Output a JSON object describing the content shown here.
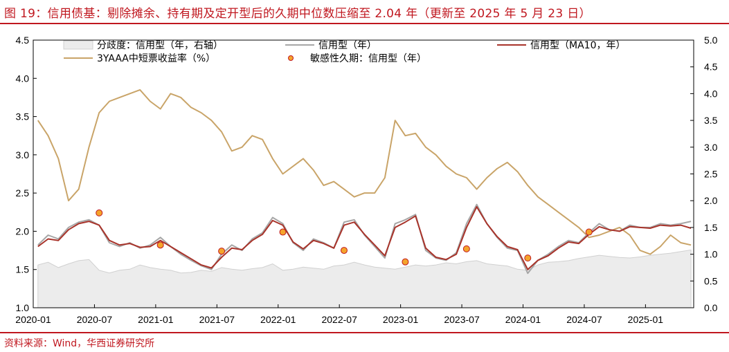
{
  "title": "图 19：信用债基：剔除摊余、持有期及定开型后的久期中位数压缩至 2.04 年（更新至 2025 年 5 月 23 日）",
  "source": "资料来源：Wind，华西证券研究所",
  "colors": {
    "accent": "#c0171f",
    "divergence_fill": "#ececec",
    "divergence_stroke": "#d0d0d0",
    "credit_line": "#a6a6a6",
    "ma10_line": "#a8332a",
    "yield_line": "#c9a468",
    "marker_fill": "#f4a42c",
    "marker_stroke": "#c0171f"
  },
  "legend": [
    {
      "label": "分歧度：信用型（年，右轴）",
      "kind": "area"
    },
    {
      "label": "信用型（年）",
      "kind": "line-gray"
    },
    {
      "label": "信用型（MA10，年）",
      "kind": "line-red"
    },
    {
      "label": "3YAAA中短票收益率（%）",
      "kind": "line-gold"
    },
    {
      "label": "敏感性久期：信用型（年）",
      "kind": "marker"
    }
  ],
  "chart_data": {
    "type": "line",
    "x_ticks": [
      "2020-01",
      "2020-07",
      "2021-01",
      "2021-07",
      "2022-01",
      "2022-07",
      "2023-01",
      "2023-07",
      "2024-01",
      "2024-07",
      "2025-01"
    ],
    "x_range": [
      "2020-01-01",
      "2025-05-23"
    ],
    "y_left": {
      "min": 1.0,
      "max": 4.5,
      "ticks": [
        "1.0",
        "1.5",
        "2.0",
        "2.5",
        "3.0",
        "3.5",
        "4.0",
        "4.5"
      ]
    },
    "y_right": {
      "min": 0.0,
      "max": 5.0,
      "ticks": [
        "0.0",
        "0.5",
        "1.0",
        "1.5",
        "2.0",
        "2.5",
        "3.0",
        "3.5",
        "4.0",
        "4.5",
        "5.0"
      ]
    },
    "series": [
      {
        "name": "信用型（年）",
        "axis": "left",
        "points": [
          [
            "2020-01",
            1.82
          ],
          [
            "2020-02",
            1.95
          ],
          [
            "2020-03",
            1.9
          ],
          [
            "2020-04",
            2.05
          ],
          [
            "2020-05",
            2.12
          ],
          [
            "2020-06",
            2.15
          ],
          [
            "2020-07",
            2.08
          ],
          [
            "2020-08",
            1.85
          ],
          [
            "2020-09",
            1.8
          ],
          [
            "2020-10",
            1.85
          ],
          [
            "2020-11",
            1.78
          ],
          [
            "2020-12",
            1.82
          ],
          [
            "2021-01",
            1.92
          ],
          [
            "2021-02",
            1.8
          ],
          [
            "2021-03",
            1.7
          ],
          [
            "2021-04",
            1.62
          ],
          [
            "2021-05",
            1.55
          ],
          [
            "2021-06",
            1.5
          ],
          [
            "2021-07",
            1.7
          ],
          [
            "2021-08",
            1.82
          ],
          [
            "2021-09",
            1.75
          ],
          [
            "2021-10",
            1.9
          ],
          [
            "2021-11",
            1.98
          ],
          [
            "2021-12",
            2.18
          ],
          [
            "2022-01",
            2.1
          ],
          [
            "2022-02",
            1.85
          ],
          [
            "2022-03",
            1.75
          ],
          [
            "2022-04",
            1.9
          ],
          [
            "2022-05",
            1.85
          ],
          [
            "2022-06",
            1.78
          ],
          [
            "2022-07",
            2.12
          ],
          [
            "2022-08",
            2.15
          ],
          [
            "2022-09",
            1.95
          ],
          [
            "2022-10",
            1.8
          ],
          [
            "2022-11",
            1.65
          ],
          [
            "2022-12",
            2.1
          ],
          [
            "2023-01",
            2.15
          ],
          [
            "2023-02",
            2.22
          ],
          [
            "2023-03",
            1.75
          ],
          [
            "2023-04",
            1.65
          ],
          [
            "2023-05",
            1.62
          ],
          [
            "2023-06",
            1.72
          ],
          [
            "2023-07",
            2.1
          ],
          [
            "2023-08",
            2.35
          ],
          [
            "2023-09",
            2.1
          ],
          [
            "2023-10",
            1.92
          ],
          [
            "2023-11",
            1.78
          ],
          [
            "2023-12",
            1.75
          ],
          [
            "2024-01",
            1.45
          ],
          [
            "2024-02",
            1.62
          ],
          [
            "2024-03",
            1.7
          ],
          [
            "2024-04",
            1.8
          ],
          [
            "2024-05",
            1.88
          ],
          [
            "2024-06",
            1.85
          ],
          [
            "2024-07",
            1.98
          ],
          [
            "2024-08",
            2.1
          ],
          [
            "2024-09",
            2.02
          ],
          [
            "2024-10",
            2.0
          ],
          [
            "2024-11",
            2.08
          ],
          [
            "2024-12",
            2.05
          ],
          [
            "2025-01",
            2.05
          ],
          [
            "2025-02",
            2.1
          ],
          [
            "2025-03",
            2.08
          ],
          [
            "2025-04",
            2.1
          ],
          [
            "2025-05",
            2.13
          ]
        ]
      },
      {
        "name": "信用型（MA10，年）",
        "axis": "left",
        "points": [
          [
            "2020-01",
            1.8
          ],
          [
            "2020-02",
            1.9
          ],
          [
            "2020-03",
            1.88
          ],
          [
            "2020-04",
            2.02
          ],
          [
            "2020-05",
            2.1
          ],
          [
            "2020-06",
            2.13
          ],
          [
            "2020-07",
            2.08
          ],
          [
            "2020-08",
            1.88
          ],
          [
            "2020-09",
            1.82
          ],
          [
            "2020-10",
            1.84
          ],
          [
            "2020-11",
            1.79
          ],
          [
            "2020-12",
            1.8
          ],
          [
            "2021-01",
            1.88
          ],
          [
            "2021-02",
            1.8
          ],
          [
            "2021-03",
            1.72
          ],
          [
            "2021-04",
            1.64
          ],
          [
            "2021-05",
            1.56
          ],
          [
            "2021-06",
            1.52
          ],
          [
            "2021-07",
            1.66
          ],
          [
            "2021-08",
            1.78
          ],
          [
            "2021-09",
            1.76
          ],
          [
            "2021-10",
            1.88
          ],
          [
            "2021-11",
            1.96
          ],
          [
            "2021-12",
            2.14
          ],
          [
            "2022-01",
            2.08
          ],
          [
            "2022-02",
            1.86
          ],
          [
            "2022-03",
            1.77
          ],
          [
            "2022-04",
            1.88
          ],
          [
            "2022-05",
            1.84
          ],
          [
            "2022-06",
            1.78
          ],
          [
            "2022-07",
            2.08
          ],
          [
            "2022-08",
            2.12
          ],
          [
            "2022-09",
            1.96
          ],
          [
            "2022-10",
            1.82
          ],
          [
            "2022-11",
            1.68
          ],
          [
            "2022-12",
            2.05
          ],
          [
            "2023-01",
            2.12
          ],
          [
            "2023-02",
            2.2
          ],
          [
            "2023-03",
            1.78
          ],
          [
            "2023-04",
            1.66
          ],
          [
            "2023-05",
            1.63
          ],
          [
            "2023-06",
            1.7
          ],
          [
            "2023-07",
            2.05
          ],
          [
            "2023-08",
            2.32
          ],
          [
            "2023-09",
            2.1
          ],
          [
            "2023-10",
            1.93
          ],
          [
            "2023-11",
            1.8
          ],
          [
            "2023-12",
            1.76
          ],
          [
            "2024-01",
            1.5
          ],
          [
            "2024-02",
            1.62
          ],
          [
            "2024-03",
            1.68
          ],
          [
            "2024-04",
            1.78
          ],
          [
            "2024-05",
            1.86
          ],
          [
            "2024-06",
            1.84
          ],
          [
            "2024-07",
            1.96
          ],
          [
            "2024-08",
            2.06
          ],
          [
            "2024-09",
            2.02
          ],
          [
            "2024-10",
            2.0
          ],
          [
            "2024-11",
            2.06
          ],
          [
            "2024-12",
            2.05
          ],
          [
            "2025-01",
            2.04
          ],
          [
            "2025-02",
            2.08
          ],
          [
            "2025-03",
            2.07
          ],
          [
            "2025-04",
            2.08
          ],
          [
            "2025-05",
            2.04
          ]
        ]
      },
      {
        "name": "3YAAA中短票收益率（%）",
        "axis": "left",
        "points": [
          [
            "2020-01",
            3.45
          ],
          [
            "2020-02",
            3.25
          ],
          [
            "2020-03",
            2.95
          ],
          [
            "2020-04",
            2.4
          ],
          [
            "2020-05",
            2.55
          ],
          [
            "2020-06",
            3.1
          ],
          [
            "2020-07",
            3.55
          ],
          [
            "2020-08",
            3.7
          ],
          [
            "2020-09",
            3.75
          ],
          [
            "2020-10",
            3.8
          ],
          [
            "2020-11",
            3.85
          ],
          [
            "2020-12",
            3.7
          ],
          [
            "2021-01",
            3.6
          ],
          [
            "2021-02",
            3.8
          ],
          [
            "2021-03",
            3.75
          ],
          [
            "2021-04",
            3.62
          ],
          [
            "2021-05",
            3.55
          ],
          [
            "2021-06",
            3.45
          ],
          [
            "2021-07",
            3.3
          ],
          [
            "2021-08",
            3.05
          ],
          [
            "2021-09",
            3.1
          ],
          [
            "2021-10",
            3.25
          ],
          [
            "2021-11",
            3.2
          ],
          [
            "2021-12",
            2.95
          ],
          [
            "2022-01",
            2.75
          ],
          [
            "2022-02",
            2.85
          ],
          [
            "2022-03",
            2.95
          ],
          [
            "2022-04",
            2.8
          ],
          [
            "2022-05",
            2.6
          ],
          [
            "2022-06",
            2.65
          ],
          [
            "2022-07",
            2.55
          ],
          [
            "2022-08",
            2.45
          ],
          [
            "2022-09",
            2.5
          ],
          [
            "2022-10",
            2.5
          ],
          [
            "2022-11",
            2.7
          ],
          [
            "2022-12",
            3.45
          ],
          [
            "2023-01",
            3.25
          ],
          [
            "2023-02",
            3.28
          ],
          [
            "2023-03",
            3.1
          ],
          [
            "2023-04",
            3.0
          ],
          [
            "2023-05",
            2.85
          ],
          [
            "2023-06",
            2.75
          ],
          [
            "2023-07",
            2.7
          ],
          [
            "2023-08",
            2.55
          ],
          [
            "2023-09",
            2.7
          ],
          [
            "2023-10",
            2.82
          ],
          [
            "2023-11",
            2.9
          ],
          [
            "2023-12",
            2.78
          ],
          [
            "2024-01",
            2.6
          ],
          [
            "2024-02",
            2.45
          ],
          [
            "2024-03",
            2.35
          ],
          [
            "2024-04",
            2.25
          ],
          [
            "2024-05",
            2.15
          ],
          [
            "2024-06",
            2.05
          ],
          [
            "2024-07",
            1.92
          ],
          [
            "2024-08",
            1.95
          ],
          [
            "2024-09",
            2.0
          ],
          [
            "2024-10",
            2.05
          ],
          [
            "2024-11",
            1.95
          ],
          [
            "2024-12",
            1.75
          ],
          [
            "2025-01",
            1.7
          ],
          [
            "2025-02",
            1.8
          ],
          [
            "2025-03",
            1.95
          ],
          [
            "2025-04",
            1.85
          ],
          [
            "2025-05",
            1.82
          ]
        ]
      },
      {
        "name": "分歧度：信用型（年，右轴）",
        "axis": "right",
        "points": [
          [
            "2020-01",
            0.8
          ],
          [
            "2020-02",
            0.85
          ],
          [
            "2020-03",
            0.75
          ],
          [
            "2020-04",
            0.82
          ],
          [
            "2020-05",
            0.88
          ],
          [
            "2020-06",
            0.9
          ],
          [
            "2020-07",
            0.7
          ],
          [
            "2020-08",
            0.65
          ],
          [
            "2020-09",
            0.7
          ],
          [
            "2020-10",
            0.72
          ],
          [
            "2020-11",
            0.8
          ],
          [
            "2020-12",
            0.75
          ],
          [
            "2021-01",
            0.72
          ],
          [
            "2021-02",
            0.7
          ],
          [
            "2021-03",
            0.65
          ],
          [
            "2021-04",
            0.66
          ],
          [
            "2021-05",
            0.7
          ],
          [
            "2021-06",
            0.68
          ],
          [
            "2021-07",
            0.75
          ],
          [
            "2021-08",
            0.72
          ],
          [
            "2021-09",
            0.7
          ],
          [
            "2021-10",
            0.73
          ],
          [
            "2021-11",
            0.75
          ],
          [
            "2021-12",
            0.82
          ],
          [
            "2022-01",
            0.7
          ],
          [
            "2022-02",
            0.72
          ],
          [
            "2022-03",
            0.76
          ],
          [
            "2022-04",
            0.74
          ],
          [
            "2022-05",
            0.72
          ],
          [
            "2022-06",
            0.78
          ],
          [
            "2022-07",
            0.8
          ],
          [
            "2022-08",
            0.85
          ],
          [
            "2022-09",
            0.8
          ],
          [
            "2022-10",
            0.76
          ],
          [
            "2022-11",
            0.74
          ],
          [
            "2022-12",
            0.72
          ],
          [
            "2023-01",
            0.76
          ],
          [
            "2023-02",
            0.8
          ],
          [
            "2023-03",
            0.78
          ],
          [
            "2023-04",
            0.8
          ],
          [
            "2023-05",
            0.84
          ],
          [
            "2023-06",
            0.82
          ],
          [
            "2023-07",
            0.86
          ],
          [
            "2023-08",
            0.88
          ],
          [
            "2023-09",
            0.82
          ],
          [
            "2023-10",
            0.8
          ],
          [
            "2023-11",
            0.78
          ],
          [
            "2023-12",
            0.72
          ],
          [
            "2024-01",
            0.7
          ],
          [
            "2024-02",
            0.8
          ],
          [
            "2024-03",
            0.85
          ],
          [
            "2024-04",
            0.86
          ],
          [
            "2024-05",
            0.88
          ],
          [
            "2024-06",
            0.92
          ],
          [
            "2024-07",
            0.95
          ],
          [
            "2024-08",
            0.98
          ],
          [
            "2024-09",
            0.96
          ],
          [
            "2024-10",
            0.94
          ],
          [
            "2024-11",
            0.93
          ],
          [
            "2024-12",
            0.95
          ],
          [
            "2025-01",
            0.98
          ],
          [
            "2025-02",
            1.0
          ],
          [
            "2025-03",
            1.02
          ],
          [
            "2025-04",
            1.05
          ],
          [
            "2025-05",
            1.08
          ]
        ]
      }
    ],
    "markers": {
      "name": "敏感性久期：信用型（年）",
      "axis": "left",
      "points": [
        [
          "2020-07",
          2.24
        ],
        [
          "2021-01",
          1.82
        ],
        [
          "2021-07",
          1.74
        ],
        [
          "2022-01",
          1.99
        ],
        [
          "2022-07",
          1.75
        ],
        [
          "2023-01",
          1.6
        ],
        [
          "2023-07",
          1.77
        ],
        [
          "2024-01",
          1.65
        ],
        [
          "2024-07",
          1.99
        ]
      ]
    }
  }
}
